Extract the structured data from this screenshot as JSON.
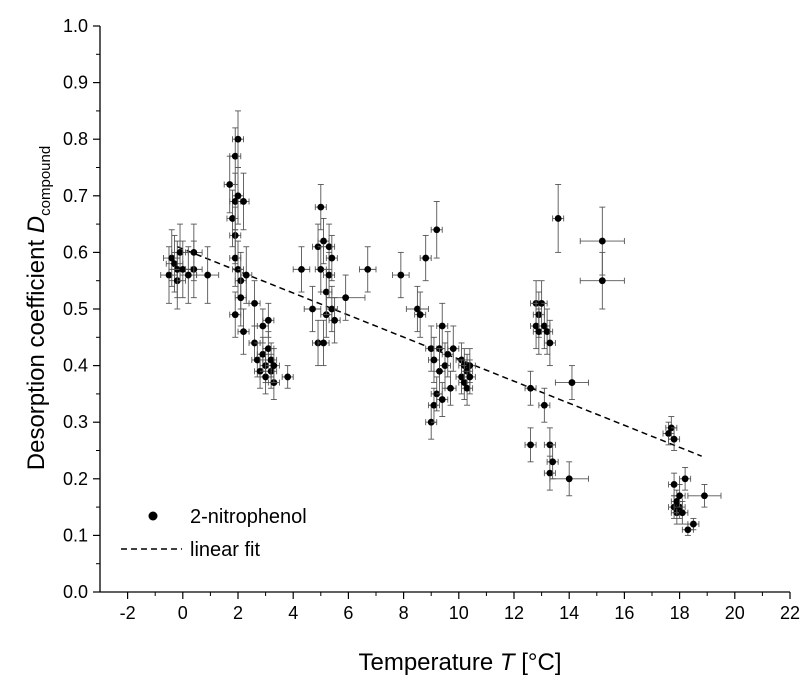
{
  "chart_data": {
    "type": "scatter",
    "xlabel": {
      "text": "Temperature ",
      "symbol": "T",
      "unit": " [°C]"
    },
    "ylabel": {
      "text": "Desorption coefficient ",
      "symbol": "D",
      "subscript": "compound"
    },
    "xlim": [
      -3,
      22
    ],
    "ylim": [
      0.0,
      1.0
    ],
    "x_ticks": [
      -2,
      0,
      2,
      4,
      6,
      8,
      10,
      12,
      14,
      16,
      18,
      20,
      22
    ],
    "y_ticks": [
      0.0,
      0.1,
      0.2,
      0.3,
      0.4,
      0.5,
      0.6,
      0.7,
      0.8,
      0.9,
      1.0
    ],
    "x_tick_labels": [
      "-2",
      "0",
      "2",
      "4",
      "6",
      "8",
      "10",
      "12",
      "14",
      "16",
      "18",
      "20",
      "22"
    ],
    "y_tick_labels": [
      "0.0",
      "0.1",
      "0.2",
      "0.3",
      "0.4",
      "0.5",
      "0.6",
      "0.7",
      "0.8",
      "0.9",
      "1.0"
    ],
    "legend": {
      "placement": "bottom-left",
      "entries": [
        {
          "label": "2-nitrophenol",
          "style": "marker"
        },
        {
          "label": "linear fit",
          "style": "dashed-line"
        }
      ]
    },
    "colors": {
      "points": "#000000",
      "fit": "#000000",
      "axes": "#000000"
    },
    "series": [
      {
        "name": "2-nitrophenol",
        "points": [
          [
            -0.5,
            0.56,
            0.3,
            0.05
          ],
          [
            -0.4,
            0.59,
            0.3,
            0.05
          ],
          [
            -0.3,
            0.58,
            0.3,
            0.05
          ],
          [
            -0.2,
            0.55,
            0.3,
            0.05
          ],
          [
            -0.2,
            0.57,
            0.3,
            0.05
          ],
          [
            -0.1,
            0.6,
            0.3,
            0.05
          ],
          [
            0.0,
            0.57,
            0.3,
            0.05
          ],
          [
            0.2,
            0.56,
            0.3,
            0.05
          ],
          [
            0.4,
            0.57,
            0.3,
            0.05
          ],
          [
            0.4,
            0.6,
            0.3,
            0.05
          ],
          [
            0.9,
            0.56,
            0.4,
            0.05
          ],
          [
            1.7,
            0.72,
            0.2,
            0.05
          ],
          [
            1.8,
            0.66,
            0.2,
            0.05
          ],
          [
            1.9,
            0.77,
            0.2,
            0.05
          ],
          [
            1.9,
            0.69,
            0.2,
            0.05
          ],
          [
            1.9,
            0.63,
            0.2,
            0.05
          ],
          [
            1.9,
            0.59,
            0.2,
            0.05
          ],
          [
            2.0,
            0.8,
            0.2,
            0.05
          ],
          [
            2.0,
            0.7,
            0.2,
            0.05
          ],
          [
            2.0,
            0.57,
            0.2,
            0.05
          ],
          [
            2.1,
            0.55,
            0.2,
            0.05
          ],
          [
            2.1,
            0.52,
            0.2,
            0.05
          ],
          [
            2.2,
            0.69,
            0.2,
            0.05
          ],
          [
            2.3,
            0.56,
            0.2,
            0.05
          ],
          [
            2.2,
            0.46,
            0.2,
            0.04
          ],
          [
            1.9,
            0.49,
            0.2,
            0.04
          ],
          [
            2.6,
            0.51,
            0.2,
            0.04
          ],
          [
            2.6,
            0.44,
            0.2,
            0.03
          ],
          [
            2.7,
            0.41,
            0.2,
            0.03
          ],
          [
            2.8,
            0.39,
            0.2,
            0.03
          ],
          [
            2.9,
            0.42,
            0.2,
            0.03
          ],
          [
            2.9,
            0.47,
            0.2,
            0.03
          ],
          [
            3.0,
            0.4,
            0.2,
            0.03
          ],
          [
            3.0,
            0.38,
            0.2,
            0.03
          ],
          [
            3.1,
            0.43,
            0.2,
            0.03
          ],
          [
            3.1,
            0.48,
            0.2,
            0.03
          ],
          [
            3.2,
            0.39,
            0.2,
            0.03
          ],
          [
            3.2,
            0.41,
            0.2,
            0.03
          ],
          [
            3.3,
            0.37,
            0.2,
            0.03
          ],
          [
            3.3,
            0.4,
            0.2,
            0.03
          ],
          [
            3.8,
            0.38,
            0.2,
            0.02
          ],
          [
            4.3,
            0.57,
            0.3,
            0.04
          ],
          [
            4.7,
            0.5,
            0.3,
            0.04
          ],
          [
            4.9,
            0.61,
            0.2,
            0.04
          ],
          [
            4.9,
            0.44,
            0.2,
            0.04
          ],
          [
            5.0,
            0.57,
            0.2,
            0.04
          ],
          [
            5.0,
            0.68,
            0.2,
            0.04
          ],
          [
            5.1,
            0.62,
            0.2,
            0.04
          ],
          [
            5.1,
            0.44,
            0.2,
            0.04
          ],
          [
            5.2,
            0.49,
            0.2,
            0.04
          ],
          [
            5.2,
            0.53,
            0.2,
            0.04
          ],
          [
            5.3,
            0.56,
            0.2,
            0.04
          ],
          [
            5.3,
            0.61,
            0.2,
            0.04
          ],
          [
            5.4,
            0.59,
            0.2,
            0.04
          ],
          [
            5.4,
            0.5,
            0.2,
            0.04
          ],
          [
            5.5,
            0.48,
            0.2,
            0.04
          ],
          [
            5.9,
            0.52,
            0.7,
            0.04
          ],
          [
            6.7,
            0.57,
            0.3,
            0.04
          ],
          [
            7.9,
            0.56,
            0.3,
            0.04
          ],
          [
            8.5,
            0.5,
            0.4,
            0.04
          ],
          [
            8.6,
            0.49,
            0.2,
            0.04
          ],
          [
            8.8,
            0.59,
            0.2,
            0.04
          ],
          [
            9.0,
            0.43,
            0.2,
            0.04
          ],
          [
            9.0,
            0.3,
            0.2,
            0.03
          ],
          [
            9.1,
            0.41,
            0.2,
            0.04
          ],
          [
            9.1,
            0.33,
            0.2,
            0.03
          ],
          [
            9.2,
            0.64,
            0.2,
            0.05
          ],
          [
            9.2,
            0.35,
            0.2,
            0.03
          ],
          [
            9.3,
            0.43,
            0.2,
            0.04
          ],
          [
            9.3,
            0.39,
            0.2,
            0.04
          ],
          [
            9.4,
            0.47,
            0.2,
            0.04
          ],
          [
            9.4,
            0.34,
            0.2,
            0.03
          ],
          [
            9.5,
            0.4,
            0.2,
            0.04
          ],
          [
            9.6,
            0.42,
            0.2,
            0.04
          ],
          [
            9.7,
            0.36,
            0.2,
            0.03
          ],
          [
            9.8,
            0.43,
            0.2,
            0.04
          ],
          [
            10.1,
            0.41,
            0.2,
            0.03
          ],
          [
            10.1,
            0.38,
            0.2,
            0.03
          ],
          [
            10.2,
            0.4,
            0.2,
            0.03
          ],
          [
            10.2,
            0.37,
            0.2,
            0.03
          ],
          [
            10.3,
            0.39,
            0.2,
            0.03
          ],
          [
            10.3,
            0.36,
            0.2,
            0.03
          ],
          [
            10.4,
            0.4,
            0.2,
            0.03
          ],
          [
            10.4,
            0.38,
            0.2,
            0.03
          ],
          [
            12.6,
            0.26,
            0.2,
            0.03
          ],
          [
            12.6,
            0.36,
            0.2,
            0.03
          ],
          [
            12.8,
            0.51,
            0.2,
            0.04
          ],
          [
            12.8,
            0.47,
            0.2,
            0.04
          ],
          [
            12.9,
            0.49,
            0.2,
            0.04
          ],
          [
            12.9,
            0.46,
            0.2,
            0.04
          ],
          [
            13.0,
            0.51,
            0.2,
            0.04
          ],
          [
            13.1,
            0.47,
            0.2,
            0.04
          ],
          [
            13.1,
            0.33,
            0.2,
            0.03
          ],
          [
            13.2,
            0.46,
            0.2,
            0.04
          ],
          [
            13.3,
            0.44,
            0.2,
            0.04
          ],
          [
            13.3,
            0.26,
            0.2,
            0.03
          ],
          [
            13.3,
            0.21,
            0.2,
            0.03
          ],
          [
            13.4,
            0.23,
            0.2,
            0.03
          ],
          [
            13.6,
            0.66,
            0.2,
            0.06
          ],
          [
            14.0,
            0.2,
            0.7,
            0.03
          ],
          [
            14.1,
            0.37,
            0.6,
            0.03
          ],
          [
            15.2,
            0.62,
            0.8,
            0.06
          ],
          [
            15.2,
            0.55,
            0.8,
            0.05
          ],
          [
            17.6,
            0.28,
            0.2,
            0.02
          ],
          [
            17.7,
            0.29,
            0.2,
            0.02
          ],
          [
            17.8,
            0.27,
            0.2,
            0.02
          ],
          [
            17.8,
            0.19,
            0.2,
            0.02
          ],
          [
            17.8,
            0.15,
            0.2,
            0.02
          ],
          [
            17.9,
            0.14,
            0.2,
            0.02
          ],
          [
            17.9,
            0.16,
            0.2,
            0.02
          ],
          [
            18.0,
            0.15,
            0.2,
            0.02
          ],
          [
            18.0,
            0.17,
            0.2,
            0.02
          ],
          [
            18.1,
            0.14,
            0.2,
            0.02
          ],
          [
            18.2,
            0.2,
            0.2,
            0.02
          ],
          [
            18.3,
            0.11,
            0.2,
            0.01
          ],
          [
            18.5,
            0.12,
            0.2,
            0.01
          ],
          [
            18.9,
            0.17,
            0.6,
            0.02
          ]
        ]
      },
      {
        "name": "linear fit",
        "type": "line",
        "style": "dashed",
        "x": [
          -0.2,
          18.8
        ],
        "y": [
          0.61,
          0.24
        ]
      }
    ]
  }
}
